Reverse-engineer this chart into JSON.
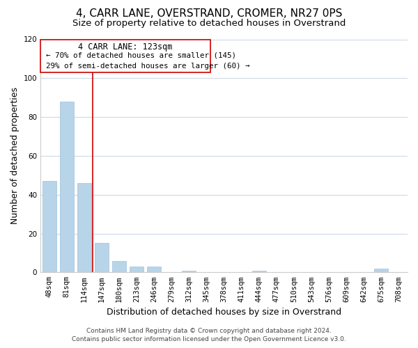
{
  "title": "4, CARR LANE, OVERSTRAND, CROMER, NR27 0PS",
  "subtitle": "Size of property relative to detached houses in Overstrand",
  "xlabel": "Distribution of detached houses by size in Overstrand",
  "ylabel": "Number of detached properties",
  "categories": [
    "48sqm",
    "81sqm",
    "114sqm",
    "147sqm",
    "180sqm",
    "213sqm",
    "246sqm",
    "279sqm",
    "312sqm",
    "345sqm",
    "378sqm",
    "411sqm",
    "444sqm",
    "477sqm",
    "510sqm",
    "543sqm",
    "576sqm",
    "609sqm",
    "642sqm",
    "675sqm",
    "708sqm"
  ],
  "values": [
    47,
    88,
    46,
    15,
    6,
    3,
    3,
    0,
    1,
    0,
    0,
    0,
    1,
    0,
    0,
    0,
    0,
    0,
    0,
    2,
    0
  ],
  "bar_color": "#b8d4e8",
  "bar_edge_color": "#a0c0dc",
  "vline_color": "#cc0000",
  "vline_x_idx": 2,
  "annotation_title": "4 CARR LANE: 123sqm",
  "annotation_line1": "← 70% of detached houses are smaller (145)",
  "annotation_line2": "29% of semi-detached houses are larger (60) →",
  "ylim": [
    0,
    120
  ],
  "yticks": [
    0,
    20,
    40,
    60,
    80,
    100,
    120
  ],
  "footer1": "Contains HM Land Registry data © Crown copyright and database right 2024.",
  "footer2": "Contains public sector information licensed under the Open Government Licence v3.0.",
  "background_color": "#ffffff",
  "grid_color": "#ccd9e8",
  "title_fontsize": 11,
  "subtitle_fontsize": 9.5,
  "axis_label_fontsize": 9,
  "tick_fontsize": 7.5,
  "footer_fontsize": 6.5
}
